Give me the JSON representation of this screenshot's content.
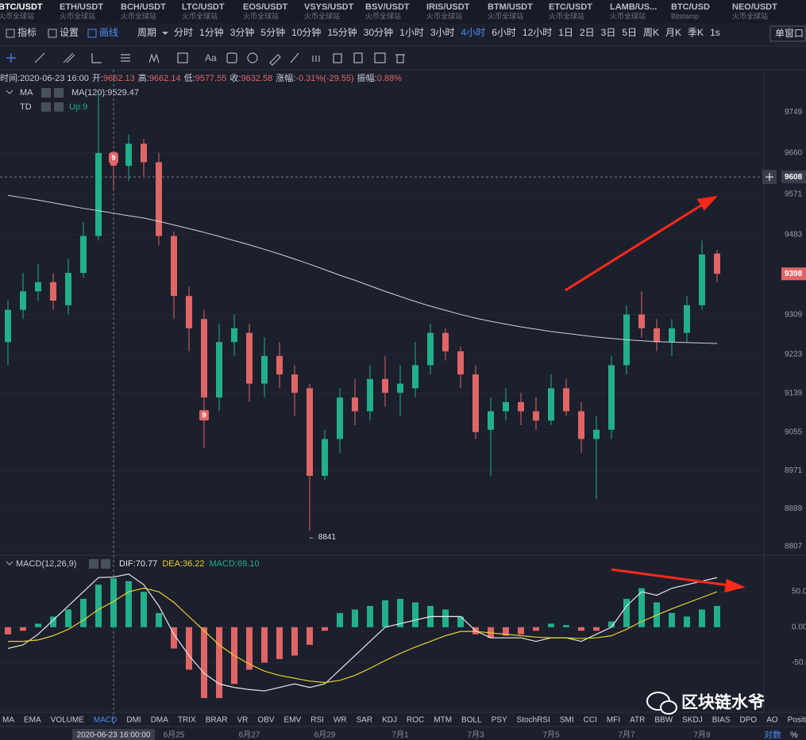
{
  "tabs": [
    {
      "symbol": "BTC/USDT",
      "exchange": "火币全球站"
    },
    {
      "symbol": "ETH/USDT",
      "exchange": "火币全球站"
    },
    {
      "symbol": "BCH/USDT",
      "exchange": "火币全球站"
    },
    {
      "symbol": "LTC/USDT",
      "exchange": "火币全球站"
    },
    {
      "symbol": "EOS/USDT",
      "exchange": "火币全球站"
    },
    {
      "symbol": "VSYS/USDT",
      "exchange": "火币全球站"
    },
    {
      "symbol": "BSV/USDT",
      "exchange": "火币全球站"
    },
    {
      "symbol": "IRIS/USDT",
      "exchange": "火币全球站"
    },
    {
      "symbol": "BTM/USDT",
      "exchange": "火币全球站"
    },
    {
      "symbol": "ETC/USDT",
      "exchange": "火币全球站"
    },
    {
      "symbol": "LAMB/US...",
      "exchange": "火币全球站"
    },
    {
      "symbol": "BTC/USD",
      "exchange": "Bitstamp"
    },
    {
      "symbol": "NEO/USDT",
      "exchange": "火币全球站"
    }
  ],
  "toolbar": {
    "items": [
      "指标",
      "设置",
      "画线"
    ],
    "period_label": "周期",
    "periods": [
      "分时",
      "1分钟",
      "3分钟",
      "5分钟",
      "10分钟",
      "15分钟",
      "30分钟",
      "1小时",
      "3小时",
      "4小时",
      "6小时",
      "12小时",
      "1日",
      "2日",
      "3日",
      "5日",
      "周K",
      "月K",
      "季K",
      "1s"
    ],
    "active_period": "4小时",
    "window": "单窗口",
    "text_tool": "Aa"
  },
  "chart_data": {
    "type": "candlestick",
    "info": [
      {
        "label": "时间:",
        "value": "2020-06-23 16:00"
      },
      {
        "label": "开:",
        "value": "9662.13"
      },
      {
        "label": "高:",
        "value": "9662.14"
      },
      {
        "label": "低:",
        "value": "9577.55"
      },
      {
        "label": "收:",
        "value": "9632.58"
      },
      {
        "label": "涨幅:",
        "value": "-0.31%(-29.55)"
      },
      {
        "label": "振幅:",
        "value": "0.88%"
      }
    ],
    "legend": {
      "ma": "MA",
      "ma_value": "MA(120):9529.47",
      "td": "TD",
      "td_value": "Up:9"
    },
    "categories": [
      null,
      null,
      null,
      null,
      null,
      null,
      null,
      "2020-06-23 16:00:00",
      null,
      null,
      null,
      "6月25",
      null,
      null,
      null,
      null,
      "6月27",
      null,
      null,
      null,
      null,
      "6月29",
      null,
      null,
      null,
      null,
      "7月1",
      null,
      null,
      null,
      null,
      "7月3",
      null,
      null,
      null,
      null,
      "7月5",
      null,
      null,
      null,
      null,
      "7月7",
      null,
      null,
      null,
      null,
      "7月9",
      null
    ],
    "open": [
      9250,
      9320,
      9360,
      9380,
      9330,
      9400,
      9480,
      9662.13,
      9632,
      9680,
      9640,
      9480,
      9350,
      9300,
      9130,
      9250,
      9270,
      9160,
      9220,
      9180,
      9150,
      8960,
      9040,
      9130,
      9100,
      9170,
      9140,
      9150,
      9200,
      9270,
      9230,
      9180,
      9060,
      9100,
      9120,
      9100,
      9080,
      9150,
      9100,
      9040,
      9060,
      9200,
      9310,
      9280,
      9250,
      9270,
      9330,
      9442
    ],
    "high": [
      9340,
      9400,
      9420,
      9400,
      9430,
      9510,
      9790,
      9662.14,
      9700,
      9690,
      9660,
      9490,
      9370,
      9320,
      9290,
      9310,
      9290,
      9260,
      9250,
      9200,
      9160,
      9060,
      9150,
      9170,
      9200,
      9220,
      9200,
      9250,
      9290,
      9280,
      9240,
      9200,
      9130,
      9150,
      9140,
      9130,
      9180,
      9170,
      9120,
      9090,
      9220,
      9330,
      9360,
      9300,
      9300,
      9350,
      9470,
      9450
    ],
    "low": [
      9200,
      9300,
      9340,
      9320,
      9310,
      9390,
      9470,
      9577.55,
      9600,
      9610,
      9460,
      9300,
      9230,
      9020,
      9100,
      9220,
      9120,
      9130,
      9150,
      9090,
      8841,
      8950,
      9010,
      9070,
      9080,
      9110,
      9090,
      9130,
      9180,
      9210,
      9150,
      9040,
      8960,
      9080,
      9070,
      9060,
      9070,
      9090,
      9010,
      8909,
      9040,
      9180,
      9260,
      9230,
      9220,
      9250,
      9320,
      9380
    ],
    "close": [
      9320,
      9360,
      9380,
      9340,
      9400,
      9480,
      9660,
      9632.58,
      9680,
      9640,
      9480,
      9350,
      9280,
      9130,
      9250,
      9280,
      9160,
      9220,
      9180,
      9140,
      8960,
      9040,
      9130,
      9100,
      9170,
      9140,
      9160,
      9200,
      9270,
      9230,
      9180,
      9055,
      9100,
      9120,
      9100,
      9080,
      9150,
      9100,
      9040,
      9060,
      9200,
      9310,
      9280,
      9250,
      9280,
      9330,
      9440,
      9398
    ],
    "ma120": [
      9568,
      9563,
      9558,
      9552,
      9546,
      9540,
      9535,
      9529.47,
      9524,
      9519,
      9512,
      9504,
      9496,
      9488,
      9479,
      9470,
      9461,
      9451,
      9441,
      9430,
      9419,
      9407,
      9395,
      9384,
      9372,
      9360,
      9349,
      9338,
      9328,
      9319,
      9310,
      9302,
      9295,
      9289,
      9283,
      9278,
      9273,
      9269,
      9265,
      9261,
      9258,
      9255,
      9253,
      9251,
      9250,
      9249,
      9248,
      9247
    ],
    "td": [
      null,
      null,
      null,
      null,
      null,
      null,
      null,
      "9",
      null,
      null,
      null,
      null,
      null,
      "9",
      null,
      null,
      null,
      null,
      null,
      null,
      null,
      null,
      null,
      null,
      null,
      null,
      null,
      null,
      null,
      null,
      null,
      null,
      null,
      null,
      null,
      null,
      null,
      null,
      null,
      null,
      null,
      null,
      null,
      null,
      null,
      null,
      null,
      null
    ],
    "low_label": "← 8841",
    "crosshair_price": 9608,
    "up_color": "#22b08a",
    "down_color": "#e06666",
    "ma_color": "#cfd3dc",
    "ylim": [
      8788,
      9806
    ],
    "yticks": [
      8807,
      8889,
      8971,
      9055,
      9139,
      9223,
      9309,
      9483,
      9571,
      9660,
      9749
    ],
    "macd": {
      "title": "MACD(12,26,9)",
      "legend": [
        "DIF:70.77",
        "DEA:36.22",
        "MACD:69.10"
      ],
      "ylim": [
        -120,
        96
      ],
      "yticks": [
        {
          "value": 50,
          "label": "50.00"
        },
        {
          "value": 0,
          "label": "0.00"
        },
        {
          "value": -50,
          "label": "-50.0"
        }
      ],
      "hist": [
        -10,
        -5,
        5,
        15,
        25,
        40,
        60,
        69.1,
        65,
        50,
        20,
        -30,
        -60,
        -100,
        -100,
        -80,
        -60,
        -50,
        -45,
        -40,
        -25,
        -5,
        20,
        25,
        30,
        38,
        40,
        35,
        30,
        25,
        15,
        -10,
        -15,
        -12,
        -10,
        -5,
        5,
        3,
        -5,
        -5,
        8,
        40,
        55,
        35,
        20,
        15,
        25,
        30
      ],
      "dif": [
        -30,
        -25,
        -10,
        10,
        30,
        50,
        70,
        70.77,
        75,
        60,
        30,
        -10,
        -40,
        -65,
        -80,
        -85,
        -88,
        -90,
        -85,
        -80,
        -85,
        -80,
        -60,
        -40,
        -20,
        0,
        5,
        10,
        15,
        15,
        15,
        -5,
        -15,
        -15,
        -15,
        -20,
        -15,
        -15,
        -20,
        -10,
        0,
        30,
        50,
        45,
        55,
        60,
        65,
        70
      ],
      "dea": [
        -20,
        -20,
        -18,
        -12,
        -3,
        10,
        25,
        36.22,
        50,
        55,
        50,
        35,
        15,
        -5,
        -25,
        -40,
        -52,
        -62,
        -68,
        -72,
        -76,
        -78,
        -75,
        -68,
        -58,
        -47,
        -37,
        -28,
        -20,
        -12,
        -6,
        -6,
        -8,
        -10,
        -12,
        -14,
        -15,
        -15,
        -16,
        -15,
        -12,
        -3,
        8,
        17,
        26,
        34,
        42,
        50
      ],
      "dif_color": "#e8e8e8",
      "dea_color": "#e6d130"
    }
  },
  "indicators": [
    "MA",
    "EMA",
    "VOLUME",
    "MACD",
    "DMI",
    "DMA",
    "TRIX",
    "BRAR",
    "VR",
    "OBV",
    "EMV",
    "RSI",
    "WR",
    "SAR",
    "KDJ",
    "ROC",
    "MTM",
    "BOLL",
    "PSY",
    "StochRSI",
    "SMI",
    "CCI",
    "MFI",
    "ATR",
    "BBW",
    "SKDJ",
    "BIAS",
    "DPO",
    "AO",
    "Position"
  ],
  "active_indicator": "MACD",
  "axis_options": [
    "对数",
    "%"
  ],
  "watermark": "区块链水爷"
}
